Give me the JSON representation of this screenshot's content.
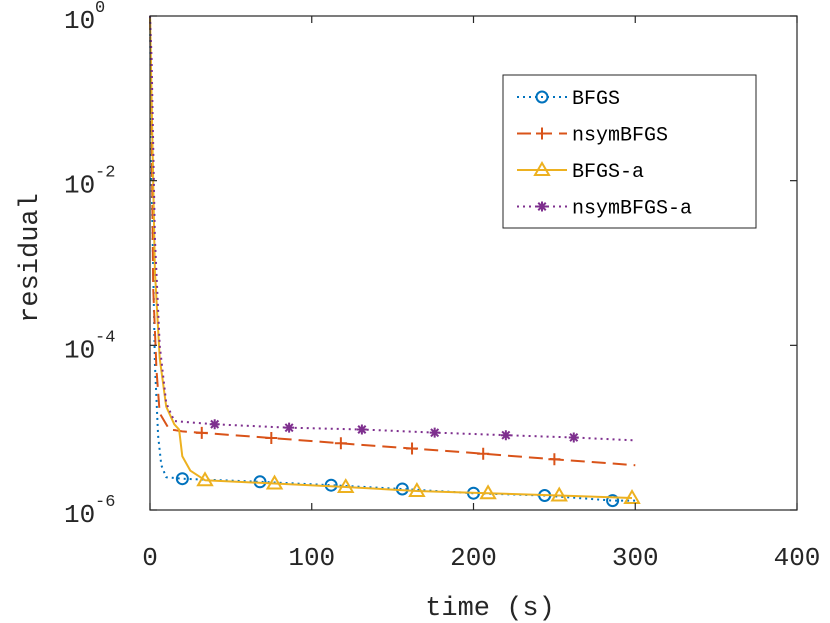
{
  "chart_data": {
    "type": "line",
    "xlabel": "time (s)",
    "ylabel": "residual",
    "xlim": [
      0,
      400
    ],
    "ylim": [
      1e-06,
      1
    ],
    "yscale": "log",
    "xticks": [
      {
        "value": 0,
        "label": "0"
      },
      {
        "value": 100,
        "label": "100"
      },
      {
        "value": 200,
        "label": "200"
      },
      {
        "value": 300,
        "label": "300"
      },
      {
        "value": 400,
        "label": "400"
      }
    ],
    "yticks": [
      {
        "value": 1,
        "base": "10",
        "exp": "0"
      },
      {
        "value": 0.01,
        "base": "10",
        "exp": "-2"
      },
      {
        "value": 0.0001,
        "base": "10",
        "exp": "-4"
      },
      {
        "value": 1e-06,
        "base": "10",
        "exp": "-6"
      }
    ],
    "grid": false,
    "legend_position": "top-right",
    "series": [
      {
        "name": "BFGS",
        "color": "#0072BD",
        "linestyle": "dotted",
        "marker": "circle",
        "x": [
          0,
          1,
          3,
          5,
          7,
          10,
          20,
          68,
          112,
          156,
          200,
          244,
          286,
          300
        ],
        "y": [
          1,
          0.01,
          6e-05,
          8e-06,
          3.5e-06,
          2.5e-06,
          2.4e-06,
          2.2e-06,
          2e-06,
          1.8e-06,
          1.6e-06,
          1.5e-06,
          1.3e-06,
          1.3e-06
        ],
        "marker_x": [
          20,
          68,
          112,
          156,
          200,
          244,
          286
        ]
      },
      {
        "name": "nsymBFGS",
        "color": "#D95319",
        "linestyle": "dashed",
        "marker": "plus",
        "x": [
          0,
          1,
          2,
          4,
          6,
          10,
          12,
          16,
          20,
          75,
          130,
          190,
          245,
          300
        ],
        "y": [
          1,
          0.05,
          0.0005,
          5e-05,
          1.5e-05,
          1.1e-05,
          9.5e-06,
          9.3e-06,
          9e-06,
          7.5e-06,
          6.2e-06,
          5.1e-06,
          4.2e-06,
          3.5e-06
        ],
        "marker_x": [
          32,
          75,
          118,
          162,
          206,
          250
        ]
      },
      {
        "name": "BFGS-a",
        "color": "#EDB120",
        "linestyle": "solid",
        "marker": "triangle",
        "x": [
          0,
          1,
          3,
          6,
          10,
          15,
          18,
          20,
          25,
          34,
          77,
          121,
          165,
          209,
          253,
          298
        ],
        "y": [
          1,
          0.1,
          0.0008,
          7e-05,
          1.8e-05,
          1.1e-05,
          9.5e-06,
          4.5e-06,
          3e-06,
          2.3e-06,
          2.1e-06,
          1.9e-06,
          1.7e-06,
          1.6e-06,
          1.5e-06,
          1.4e-06
        ],
        "marker_x": [
          34,
          77,
          121,
          165,
          209,
          253,
          298
        ]
      },
      {
        "name": "nsymBFGS-a",
        "color": "#7E2F8E",
        "linestyle": "dotted",
        "marker": "asterisk",
        "x": [
          0,
          1,
          3,
          6,
          10,
          15,
          40,
          86,
          131,
          176,
          220,
          262,
          300
        ],
        "y": [
          1,
          0.3,
          0.002,
          0.0001,
          2e-05,
          1.2e-05,
          1.1e-05,
          1e-05,
          9.5e-06,
          8.7e-06,
          8.1e-06,
          7.6e-06,
          7e-06
        ],
        "marker_x": [
          40,
          86,
          131,
          176,
          220,
          262
        ]
      }
    ]
  }
}
